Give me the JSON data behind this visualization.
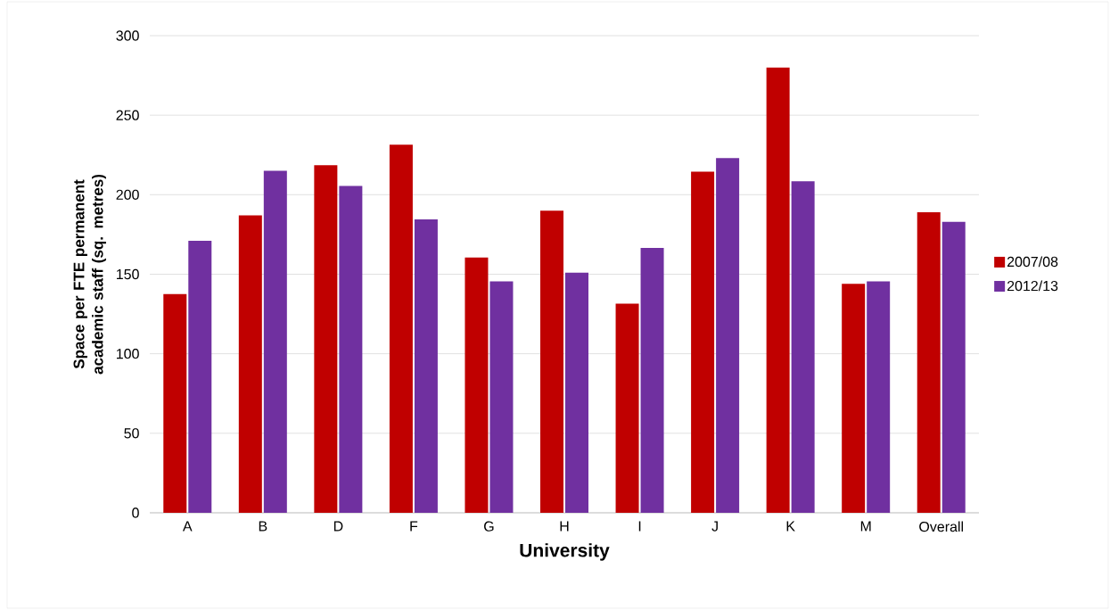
{
  "chart_data": {
    "type": "bar",
    "xlabel": "University",
    "ylabel": "Space per FTE permanent academic staff (sq. metres)",
    "categories": [
      "A",
      "B",
      "D",
      "F",
      "G",
      "H",
      "I",
      "J",
      "K",
      "M",
      "Overall"
    ],
    "series": [
      {
        "name": "2007/08",
        "color": "#c00000",
        "values": [
          137.5,
          187,
          218.5,
          231.5,
          160.5,
          190,
          131.5,
          214.5,
          280,
          144,
          189
        ]
      },
      {
        "name": "2012/13",
        "color": "#7030a0",
        "values": [
          171,
          215,
          205.5,
          184.5,
          145.5,
          151,
          166.5,
          223,
          208.5,
          145.5,
          183
        ]
      }
    ],
    "ylim": [
      0,
      300
    ],
    "yticks": [
      0,
      50,
      100,
      150,
      200,
      250,
      300
    ],
    "grid": "y",
    "legend": "right"
  }
}
